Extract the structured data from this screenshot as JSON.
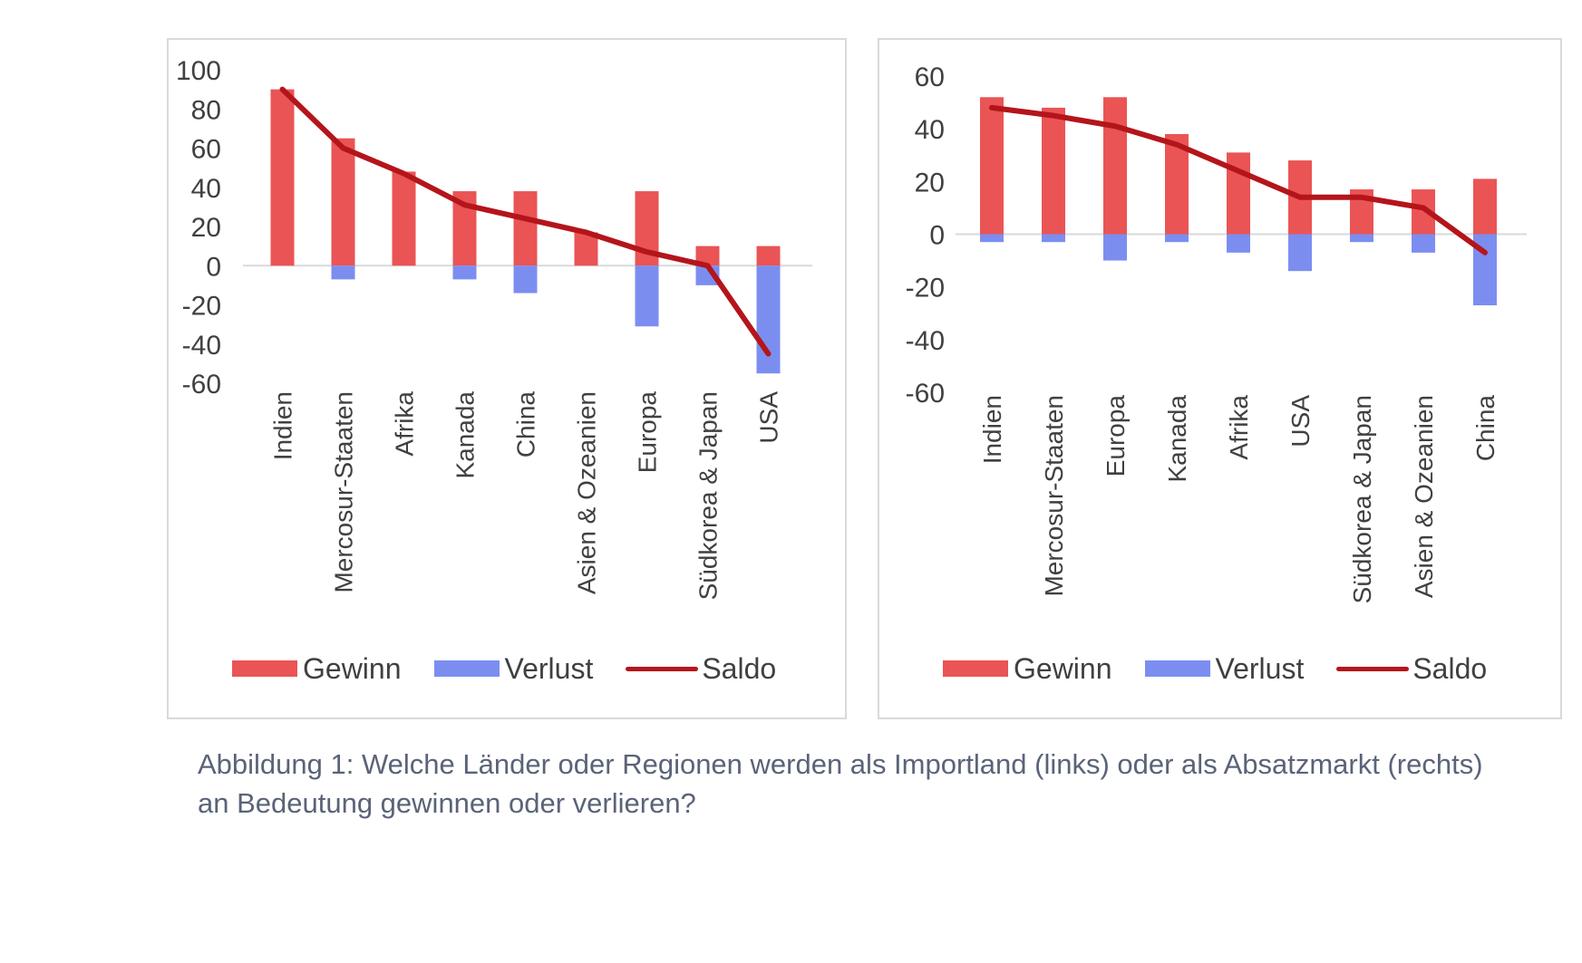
{
  "colors": {
    "gain": "#ea5455",
    "loss": "#7b8ef0",
    "balance": "#b4151b",
    "axis_text": "#404040",
    "caption": "#5a6378"
  },
  "legend": {
    "gain_label": "Gewinn",
    "loss_label": "Verlust",
    "balance_label": "Saldo"
  },
  "caption": {
    "line1": "Abbildung 1: Welche Länder oder Regionen werden als Importland (links) oder als Absatzmarkt (rechts)",
    "line2": "an Bedeutung gewinnen oder verlieren?"
  },
  "chart_data": [
    {
      "id": "left",
      "type": "bar",
      "title": "Importland",
      "xlabel": "",
      "ylabel": "",
      "ylim": [
        -60,
        100
      ],
      "yticks": [
        100,
        80,
        60,
        40,
        20,
        0,
        -20,
        -40,
        -60
      ],
      "categories": [
        "Indien",
        "Mercosur-Staaten",
        "Afrika",
        "Kanada",
        "China",
        "Asien & Ozeanien",
        "Europa",
        "Südkorea & Japan",
        "USA"
      ],
      "series": [
        {
          "name": "Gewinn",
          "kind": "bar",
          "values": [
            90,
            65,
            48,
            38,
            38,
            17,
            38,
            10,
            10
          ]
        },
        {
          "name": "Verlust",
          "kind": "bar",
          "values": [
            0,
            -7,
            0,
            -7,
            -14,
            0,
            -31,
            -10,
            -55
          ]
        },
        {
          "name": "Saldo",
          "kind": "line",
          "values": [
            90,
            60,
            47,
            31,
            24,
            17,
            7,
            0,
            -45
          ]
        }
      ]
    },
    {
      "id": "right",
      "type": "bar",
      "title": "Absatzmarkt",
      "xlabel": "",
      "ylabel": "",
      "ylim": [
        -60,
        60
      ],
      "yticks": [
        60,
        40,
        20,
        0,
        -20,
        -40,
        -60
      ],
      "categories": [
        "Indien",
        "Mercosur-Staaten",
        "Europa",
        "Kanada",
        "Afrika",
        "USA",
        "Südkorea & Japan",
        "Asien & Ozeanien",
        "China"
      ],
      "series": [
        {
          "name": "Gewinn",
          "kind": "bar",
          "values": [
            52,
            48,
            52,
            38,
            31,
            28,
            17,
            17,
            21
          ]
        },
        {
          "name": "Verlust",
          "kind": "bar",
          "values": [
            -3,
            -3,
            -10,
            -3,
            -7,
            -14,
            -3,
            -7,
            -27
          ]
        },
        {
          "name": "Saldo",
          "kind": "line",
          "values": [
            48,
            45,
            41,
            34,
            24,
            14,
            14,
            10,
            -7
          ]
        }
      ]
    }
  ]
}
